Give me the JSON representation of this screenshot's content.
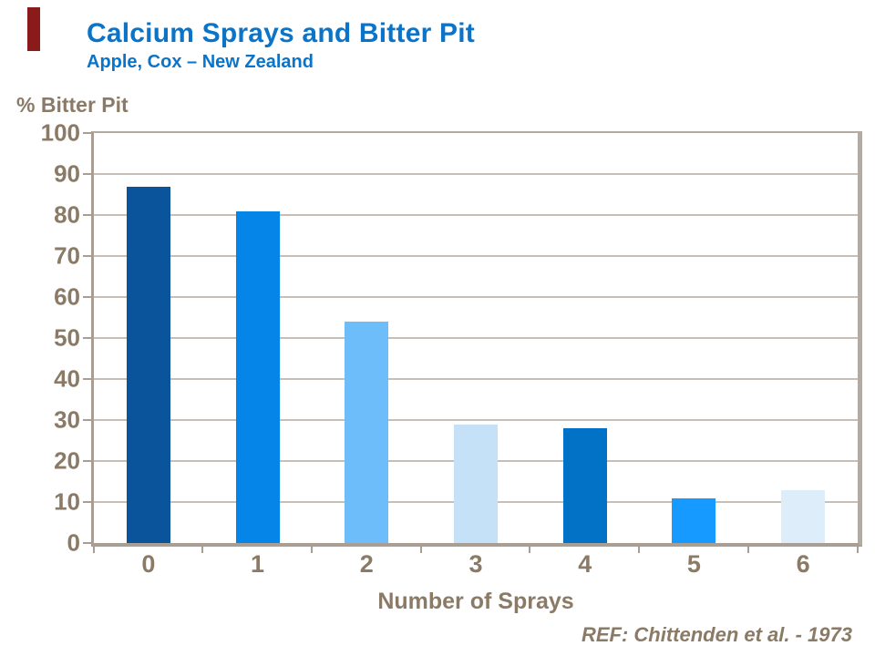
{
  "slide": {
    "title": "Calcium Sprays and Bitter Pit",
    "subtitle": "Apple, Cox – New Zealand",
    "reference": "REF: Chittenden et al. - 1973",
    "accent_bar_color": "#8B1B1B"
  },
  "colors": {
    "title_blue": "#0B74C9",
    "text_brown": "#8A7A66",
    "frame_tan": "#A89E94",
    "frame_tan_light": "#B3AAA0",
    "gridline_tan": "#C7BFB5",
    "bar_colors": [
      "#0A549C",
      "#0585E8",
      "#6EBDFB",
      "#C4E1F8",
      "#0172C6",
      "#169AFF",
      "#DDEDFA"
    ]
  },
  "chart_data": {
    "type": "bar",
    "title": "Calcium Sprays and Bitter Pit",
    "subtitle": "Apple, Cox – New Zealand",
    "xlabel": "Number of Sprays",
    "ylabel": "% Bitter Pit",
    "categories": [
      "0",
      "1",
      "2",
      "3",
      "4",
      "5",
      "6"
    ],
    "values": [
      87,
      81,
      54,
      29,
      28,
      11,
      13
    ],
    "ylim": [
      0,
      100
    ],
    "yticks": [
      0,
      10,
      20,
      30,
      40,
      50,
      60,
      70,
      80,
      90,
      100
    ],
    "grid": true,
    "legend": false
  }
}
